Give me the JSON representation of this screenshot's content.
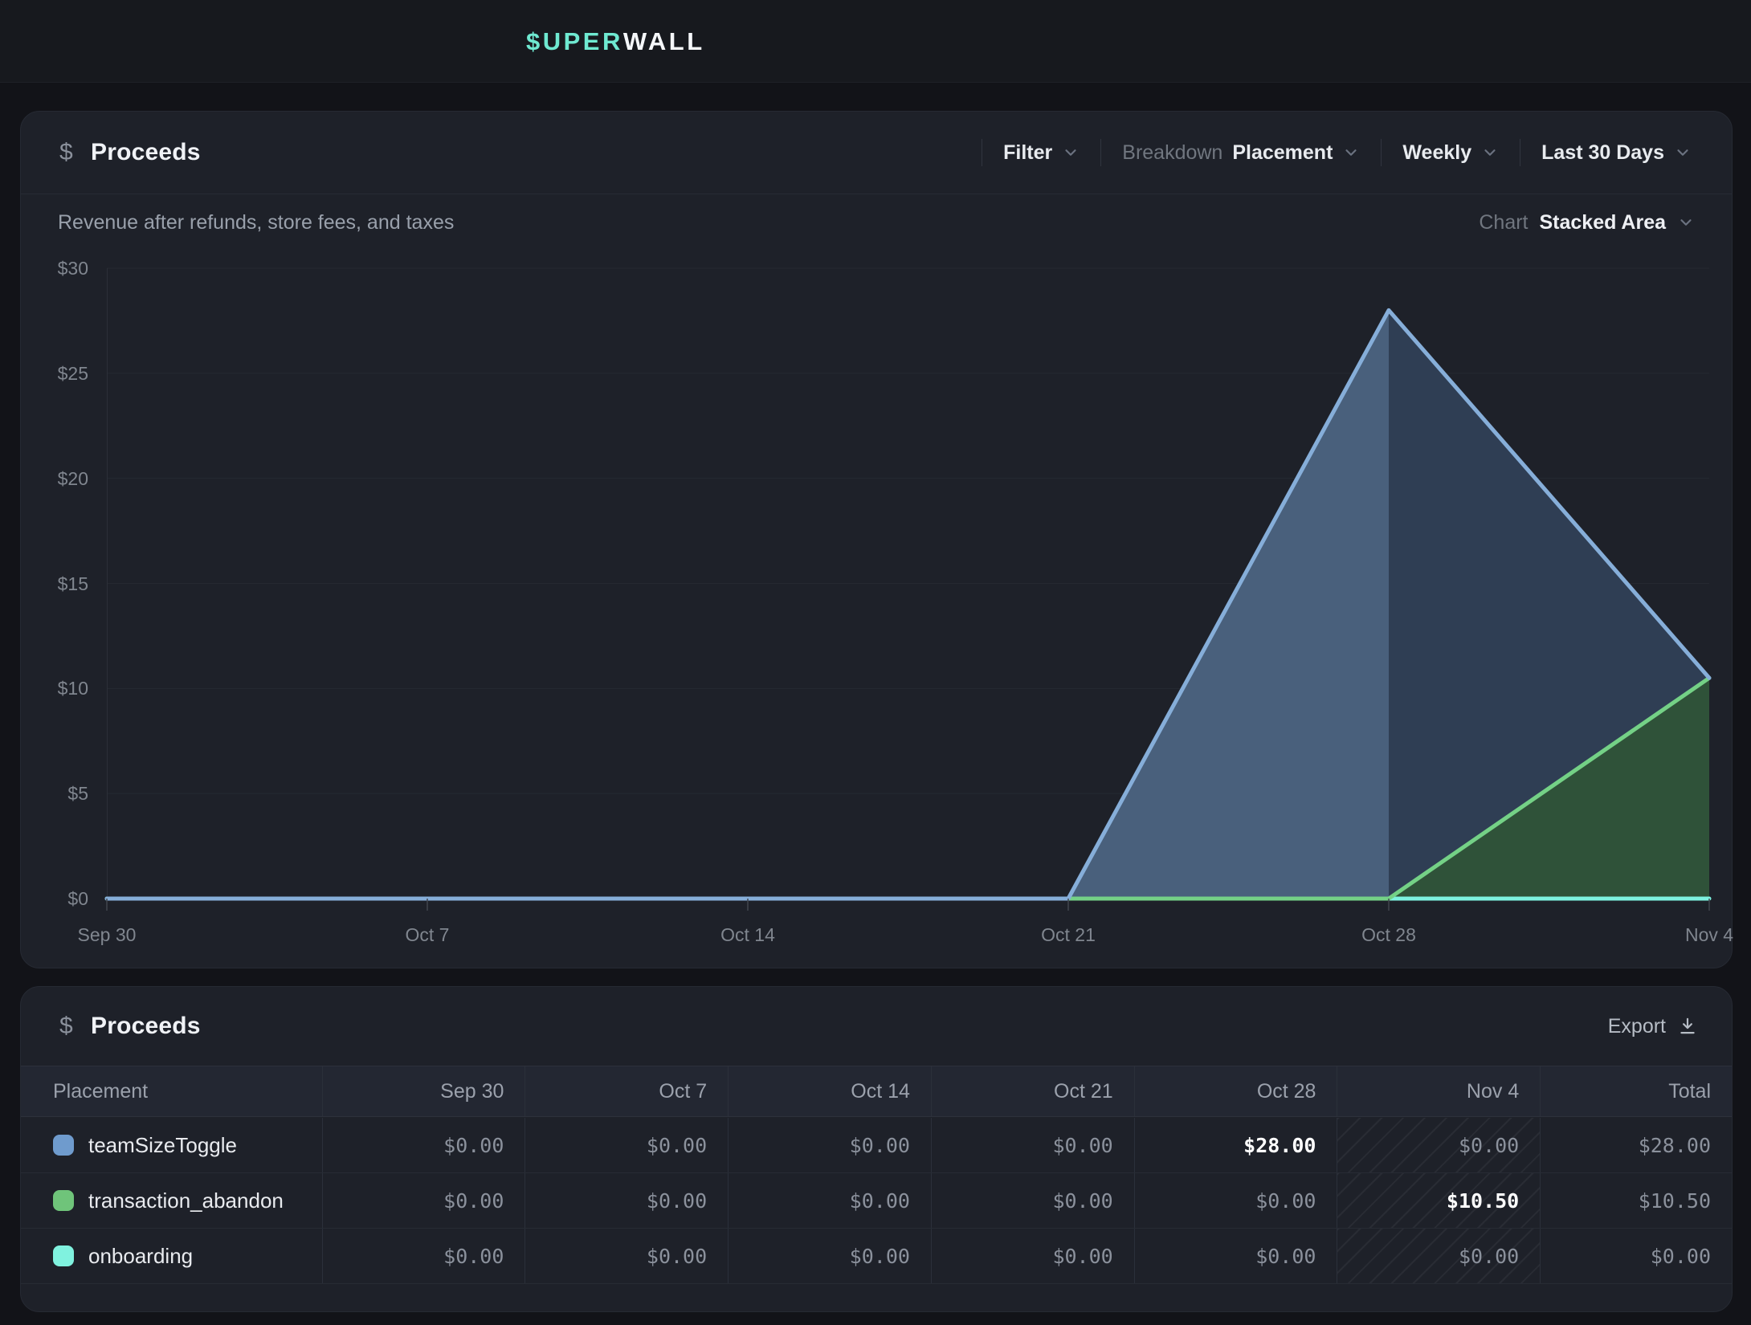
{
  "topbar": {
    "logo_primary": "$UPER",
    "logo_secondary": "WALL"
  },
  "chart_card": {
    "icon": "$",
    "title": "Proceeds",
    "controls": {
      "filter_label": "Filter",
      "breakdown_label": "Breakdown",
      "breakdown_value": "Placement",
      "interval_value": "Weekly",
      "range_value": "Last 30 Days"
    },
    "subtitle": "Revenue after refunds, store fees, and taxes",
    "chart_type_label": "Chart",
    "chart_type_value": "Stacked Area"
  },
  "chart_data": {
    "type": "area",
    "stacked": true,
    "title": "Proceeds",
    "x": [
      "Sep 30",
      "Oct 7",
      "Oct 14",
      "Oct 21",
      "Oct 28",
      "Nov 4"
    ],
    "series": [
      {
        "name": "onboarding",
        "values": [
          0,
          0,
          0,
          0,
          0,
          0
        ],
        "color": "#7df2e0"
      },
      {
        "name": "transaction_abandon",
        "values": [
          0,
          0,
          0,
          0,
          0,
          10.5
        ],
        "color": "#74d186",
        "fill": "#2f5239"
      },
      {
        "name": "teamSizeToggle",
        "values": [
          0,
          0,
          0,
          0,
          28,
          0
        ],
        "color": "#86aed9",
        "fill_rising": "#49607c",
        "fill_falling": "#2f3e54"
      }
    ],
    "ylim": [
      0,
      30
    ],
    "yticks": [
      "$30",
      "$25",
      "$20",
      "$15",
      "$10",
      "$5",
      "$0"
    ],
    "grid": true,
    "legend_position": "table-below"
  },
  "table_card": {
    "icon": "$",
    "title": "Proceeds",
    "export_label": "Export",
    "columns": [
      "Placement",
      "Sep 30",
      "Oct 7",
      "Oct 14",
      "Oct 21",
      "Oct 28",
      "Nov 4",
      "Total"
    ],
    "hatched_column": "Nov 4",
    "rows": [
      {
        "name": "teamSizeToggle",
        "color": "#6f9bcd",
        "values": [
          "$0.00",
          "$0.00",
          "$0.00",
          "$0.00",
          "$28.00",
          "$0.00",
          "$28.00"
        ]
      },
      {
        "name": "transaction_abandon",
        "color": "#6fc47a",
        "values": [
          "$0.00",
          "$0.00",
          "$0.00",
          "$0.00",
          "$0.00",
          "$10.50",
          "$10.50"
        ]
      },
      {
        "name": "onboarding",
        "color": "#80f2df",
        "values": [
          "$0.00",
          "$0.00",
          "$0.00",
          "$0.00",
          "$0.00",
          "$0.00",
          "$0.00"
        ]
      }
    ]
  }
}
